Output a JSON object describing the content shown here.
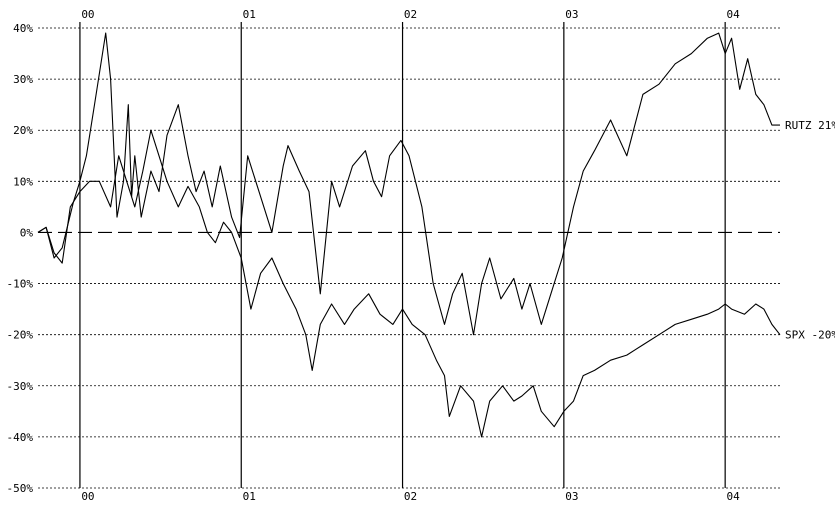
{
  "chart_data": {
    "type": "line",
    "title": "",
    "xlabel": "",
    "ylabel": "",
    "y_unit": "%",
    "ylim": [
      -50,
      40
    ],
    "xlim": [
      2000.0,
      2004.6
    ],
    "grid": true,
    "y_ticks": [
      {
        "value": 40,
        "label": "40%"
      },
      {
        "value": 30,
        "label": "30%"
      },
      {
        "value": 20,
        "label": "20%"
      },
      {
        "value": 10,
        "label": "10%"
      },
      {
        "value": 0,
        "label": "0%"
      },
      {
        "value": -10,
        "label": "-10%"
      },
      {
        "value": -20,
        "label": "-20%"
      },
      {
        "value": -30,
        "label": "-30%"
      },
      {
        "value": -40,
        "label": "-40%"
      },
      {
        "value": -50,
        "label": "-50%"
      }
    ],
    "x_ticks": [
      {
        "value": 2000.26,
        "label": "00"
      },
      {
        "value": 2001.26,
        "label": "01"
      },
      {
        "value": 2002.26,
        "label": "02"
      },
      {
        "value": 2003.26,
        "label": "03"
      },
      {
        "value": 2004.26,
        "label": "04"
      }
    ],
    "zero_line": "dashed",
    "series": [
      {
        "name": "RUTZ",
        "end_label": "RUTZ 21%",
        "color": "#000000",
        "x": [
          2000.0,
          2000.05,
          2000.1,
          2000.15,
          2000.22,
          2000.26,
          2000.3,
          2000.35,
          2000.42,
          2000.45,
          2000.49,
          2000.53,
          2000.56,
          2000.58,
          2000.6,
          2000.64,
          2000.7,
          2000.75,
          2000.8,
          2000.87,
          2000.93,
          2000.98,
          2001.03,
          2001.08,
          2001.13,
          2001.2,
          2001.25,
          2001.3,
          2001.37,
          2001.45,
          2001.52,
          2001.55,
          2001.62,
          2001.68,
          2001.75,
          2001.82,
          2001.87,
          2001.95,
          2002.03,
          2002.08,
          2002.13,
          2002.18,
          2002.25,
          2002.3,
          2002.38,
          2002.45,
          2002.52,
          2002.57,
          2002.63,
          2002.7,
          2002.75,
          2002.8,
          2002.87,
          2002.95,
          2003.0,
          2003.05,
          2003.12,
          2003.18,
          2003.25,
          2003.32,
          2003.38,
          2003.45,
          2003.55,
          2003.65,
          2003.75,
          2003.85,
          2003.95,
          2004.05,
          2004.15,
          2004.22,
          2004.26,
          2004.3,
          2004.35,
          2004.4,
          2004.45,
          2004.5,
          2004.55,
          2004.6
        ],
        "values": [
          0,
          1,
          -5,
          -3,
          6,
          10,
          15,
          25,
          39,
          30,
          3,
          10,
          25,
          7,
          15,
          3,
          12,
          8,
          19,
          25,
          15,
          8,
          12,
          5,
          13,
          3,
          -1,
          15,
          8,
          0,
          13,
          17,
          12,
          8,
          -12,
          10,
          5,
          13,
          16,
          10,
          7,
          15,
          18,
          15,
          5,
          -10,
          -18,
          -12,
          -8,
          -20,
          -10,
          -5,
          -13,
          -9,
          -15,
          -10,
          -18,
          -12,
          -5,
          5,
          12,
          16,
          22,
          15,
          27,
          29,
          33,
          35,
          38,
          39,
          35,
          38,
          28,
          34,
          27,
          25,
          21,
          21
        ]
      },
      {
        "name": "SPX",
        "end_label": "SPX -20%",
        "color": "#000000",
        "x": [
          2000.0,
          2000.05,
          2000.1,
          2000.15,
          2000.2,
          2000.26,
          2000.32,
          2000.38,
          2000.45,
          2000.5,
          2000.55,
          2000.6,
          2000.65,
          2000.7,
          2000.75,
          2000.8,
          2000.87,
          2000.93,
          2001.0,
          2001.05,
          2001.1,
          2001.15,
          2001.2,
          2001.26,
          2001.32,
          2001.38,
          2001.45,
          2001.52,
          2001.6,
          2001.66,
          2001.7,
          2001.75,
          2001.82,
          2001.9,
          2001.96,
          2002.05,
          2002.12,
          2002.2,
          2002.26,
          2002.32,
          2002.4,
          2002.47,
          2002.52,
          2002.55,
          2002.62,
          2002.7,
          2002.75,
          2002.8,
          2002.88,
          2002.95,
          2003.0,
          2003.07,
          2003.12,
          2003.2,
          2003.26,
          2003.32,
          2003.38,
          2003.45,
          2003.55,
          2003.65,
          2003.75,
          2003.85,
          2003.95,
          2004.05,
          2004.15,
          2004.22,
          2004.26,
          2004.3,
          2004.38,
          2004.45,
          2004.5,
          2004.55,
          2004.6
        ],
        "values": [
          0,
          1,
          -4,
          -6,
          5,
          8,
          10,
          10,
          5,
          15,
          10,
          5,
          12,
          20,
          15,
          10,
          5,
          9,
          5,
          0,
          -2,
          2,
          0,
          -5,
          -15,
          -8,
          -5,
          -10,
          -15,
          -20,
          -27,
          -18,
          -14,
          -18,
          -15,
          -12,
          -16,
          -18,
          -15,
          -18,
          -20,
          -25,
          -28,
          -36,
          -30,
          -33,
          -40,
          -33,
          -30,
          -33,
          -32,
          -30,
          -35,
          -38,
          -35,
          -33,
          -28,
          -27,
          -25,
          -24,
          -22,
          -20,
          -18,
          -17,
          -16,
          -15,
          -14,
          -15,
          -16,
          -14,
          -15,
          -18,
          -20
        ]
      }
    ]
  }
}
